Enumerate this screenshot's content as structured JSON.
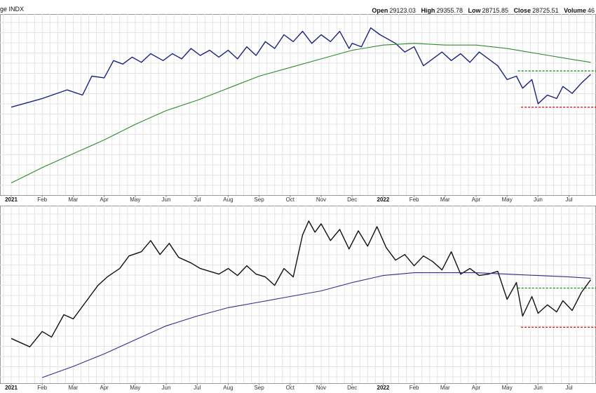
{
  "header": {
    "title": "ge INDX",
    "open_label": "Open",
    "open": "29123.03",
    "high_label": "High",
    "high": "29355.78",
    "low_label": "Low",
    "low": "28715.85",
    "close_label": "Close",
    "close": "28725.51",
    "volume_label": "Volume",
    "volume": "46"
  },
  "colors": {
    "grid": "#e4e4e4",
    "price_top": "#1a237e",
    "ma_top": "#2e8b2e",
    "price_bottom": "#111111",
    "ma_bottom": "#2b2f8f",
    "resistance": "#1a8c1a",
    "support": "#d42020"
  },
  "chart_data": [
    {
      "type": "line",
      "x_ticks": [
        "2021",
        "Feb",
        "Mar",
        "Apr",
        "May",
        "Jun",
        "Jul",
        "Aug",
        "Sep",
        "Oct",
        "Nov",
        "Dec",
        "2022",
        "Feb",
        "Mar",
        "Apr",
        "May",
        "Jun",
        "Jul"
      ],
      "year_ticks": [
        "2021",
        "2022"
      ],
      "grid": true,
      "series": [
        {
          "style": "price",
          "x": [
            0,
            1,
            1.8,
            2.3,
            2.6,
            3.0,
            3.3,
            3.6,
            3.9,
            4.2,
            4.5,
            4.9,
            5.2,
            5.5,
            5.8,
            6.1,
            6.4,
            6.7,
            7.0,
            7.3,
            7.6,
            7.9,
            8.2,
            8.5,
            8.8,
            9.1,
            9.4,
            9.7,
            10.0,
            10.3,
            10.6,
            10.9,
            11.0,
            11.3,
            11.6,
            11.9,
            12.1,
            12.4,
            12.7,
            13.0,
            13.3,
            13.6,
            13.9,
            14.2,
            14.5,
            14.8,
            15.1,
            15.4,
            15.7,
            16.0,
            16.3,
            16.5,
            16.8,
            17.0,
            17.3,
            17.6,
            17.8,
            18.1,
            18.4,
            18.7
          ],
          "values": [
            66,
            71,
            76,
            73,
            84,
            83,
            93,
            91,
            95,
            92,
            97,
            93,
            97,
            94,
            100,
            96,
            99,
            95,
            99,
            94,
            101,
            96,
            104,
            100,
            108,
            104,
            110,
            103,
            108,
            104,
            110,
            100,
            103,
            101,
            112,
            108,
            106,
            103,
            98,
            101,
            90,
            94,
            98,
            93,
            97,
            92,
            98,
            94,
            90,
            82,
            84,
            77,
            82,
            68,
            73,
            71,
            78,
            74,
            80,
            85
          ]
        },
        {
          "style": "ma",
          "x": [
            0,
            1,
            2,
            3,
            4,
            5,
            6,
            7,
            8,
            9,
            10,
            11,
            12,
            13,
            14,
            15,
            16,
            17,
            18,
            18.7
          ],
          "values": [
            22,
            31,
            39,
            47,
            56,
            64,
            70,
            77,
            84,
            89,
            94,
            99,
            102,
            103,
            102,
            102,
            100,
            97,
            94,
            92
          ]
        }
      ],
      "levels": [
        {
          "role": "resistance",
          "value": 87,
          "x_start": 16.35
        },
        {
          "role": "support",
          "value": 66,
          "x_start": 16.45
        }
      ],
      "ylim": [
        15,
        120
      ]
    },
    {
      "type": "line",
      "x_ticks": [
        "2021",
        "Feb",
        "Mar",
        "Apr",
        "May",
        "Jun",
        "Jul",
        "Aug",
        "Sep",
        "Oct",
        "Nov",
        "Dec",
        "2022",
        "Feb",
        "Mar",
        "Apr",
        "May",
        "Jun",
        "Jul"
      ],
      "year_ticks": [
        "2021",
        "2022"
      ],
      "grid": true,
      "series": [
        {
          "style": "price",
          "x": [
            0,
            0.6,
            1.0,
            1.3,
            1.7,
            2.0,
            2.4,
            2.8,
            3.1,
            3.5,
            3.8,
            4.2,
            4.5,
            4.8,
            5.1,
            5.4,
            5.8,
            6.1,
            6.4,
            6.7,
            7.0,
            7.3,
            7.6,
            7.9,
            8.2,
            8.5,
            8.8,
            9.1,
            9.4,
            9.6,
            9.8,
            10.0,
            10.3,
            10.6,
            10.9,
            11.2,
            11.5,
            11.8,
            12.1,
            12.4,
            12.7,
            13.0,
            13.3,
            13.6,
            13.9,
            14.2,
            14.5,
            14.8,
            15.1,
            15.4,
            15.7,
            16.0,
            16.3,
            16.5,
            16.8,
            17.0,
            17.3,
            17.6,
            17.8,
            18.1,
            18.4,
            18.7
          ],
          "values": [
            30,
            24,
            35,
            31,
            47,
            44,
            56,
            68,
            74,
            80,
            89,
            92,
            100,
            90,
            98,
            88,
            84,
            80,
            78,
            76,
            80,
            75,
            82,
            76,
            74,
            68,
            80,
            74,
            104,
            114,
            106,
            112,
            100,
            108,
            94,
            107,
            96,
            110,
            95,
            86,
            90,
            82,
            89,
            85,
            79,
            92,
            76,
            80,
            75,
            76,
            78,
            58,
            70,
            46,
            60,
            48,
            54,
            49,
            57,
            50,
            63,
            72
          ]
        },
        {
          "style": "ma",
          "x": [
            1,
            2,
            3,
            4,
            5,
            6,
            7,
            8,
            9,
            10,
            11,
            12,
            13,
            14,
            15,
            16,
            17,
            18,
            18.7
          ],
          "values": [
            2,
            10,
            19,
            29,
            39,
            46,
            52,
            56,
            60,
            64,
            70,
            75,
            77,
            77,
            77,
            76,
            75,
            74,
            73
          ]
        }
      ],
      "levels": [
        {
          "role": "resistance",
          "value": 66,
          "x_start": 16.35
        },
        {
          "role": "support",
          "value": 38,
          "x_start": 16.45
        }
      ],
      "ylim": [
        -2,
        125
      ]
    }
  ]
}
